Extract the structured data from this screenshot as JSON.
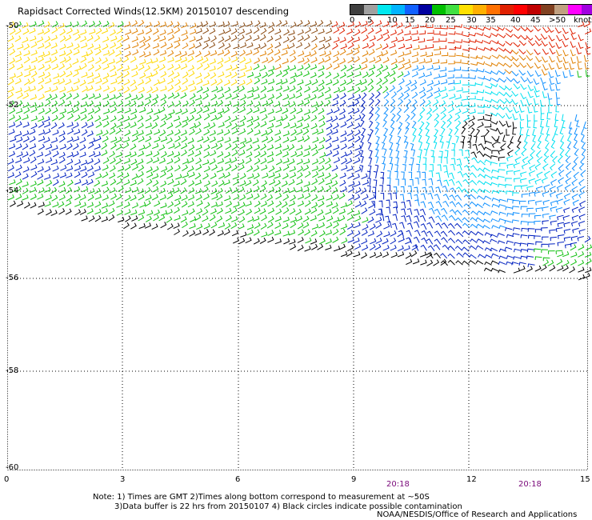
{
  "title": "Rapidsact Corrected Winds(12.5KM) 20150107 descending",
  "legend": {
    "labels": [
      "0",
      "5",
      "10",
      "15",
      "20",
      "25",
      "30",
      "35",
      "40",
      "45",
      ">50"
    ],
    "unit": "knots",
    "colors": [
      "#3f3f3f",
      "#a0a0a0",
      "#00e8f0",
      "#00b4ff",
      "#1060ff",
      "#0000a0",
      "#00c000",
      "#40e040",
      "#ffe000",
      "#ffb000",
      "#ff7000",
      "#e02000",
      "#ff0000",
      "#c00000",
      "#804020",
      "#c0a080",
      "#ff00ff",
      "#a000e0"
    ]
  },
  "y_axis": {
    "ticks": [
      "-50",
      "-52",
      "-54",
      "-56",
      "-58",
      "-60"
    ]
  },
  "x_axis": {
    "ticks": [
      "0",
      "3",
      "6",
      "9",
      "12",
      "15"
    ]
  },
  "time_labels": [
    "20:18",
    "20:18"
  ],
  "notes": [
    "Note: 1) Times are GMT 2)Times along bottom correspond to measurement at ~50S",
    "3)Data buffer is 22 hrs from 20150107 4) Black circles indicate possible contamination"
  ],
  "credit": "NOAA/NESDIS/Office of Research and Applications",
  "colors": {
    "gray": "#000000",
    "cyan": "#00e0f0",
    "lightblue": "#1090ff",
    "blue": "#0020c0",
    "green": "#10c010",
    "yellow": "#ffd800",
    "orange": "#e08000",
    "red": "#e02000",
    "brown": "#8a4a10",
    "grid": "#000000"
  }
}
